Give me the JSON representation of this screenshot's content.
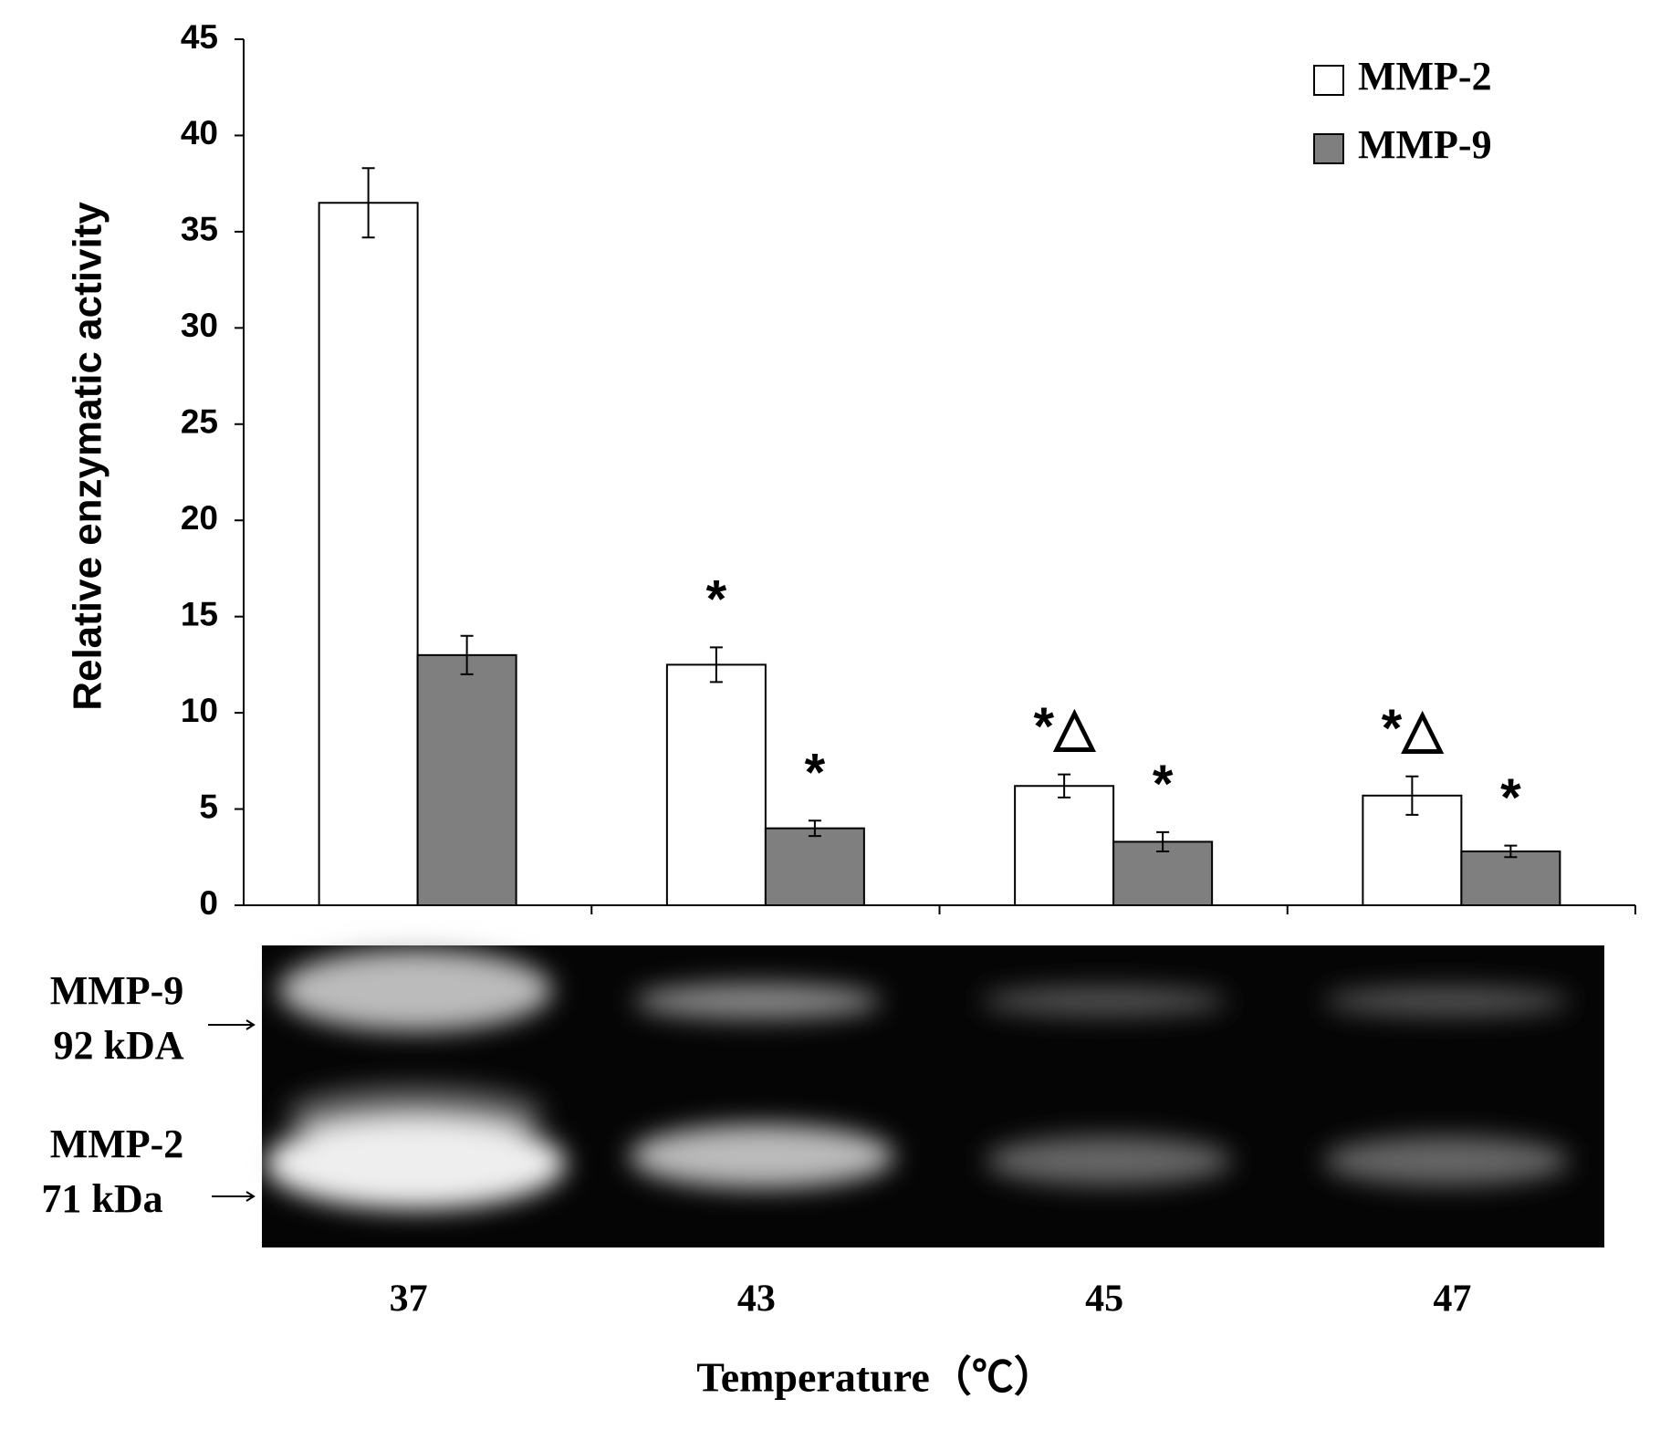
{
  "chart_data": {
    "type": "bar",
    "y_label": "Relative enzymatic activity",
    "x_label": "Temperature（℃）",
    "categories": [
      "37",
      "43",
      "45",
      "47"
    ],
    "series": [
      {
        "name": "MMP-2",
        "color": "#ffffff",
        "values": [
          36.5,
          12.5,
          6.2,
          5.7
        ],
        "errors": [
          1.8,
          0.9,
          0.6,
          1.0
        ],
        "markers": [
          null,
          "*",
          "*△",
          "*△"
        ]
      },
      {
        "name": "MMP-9",
        "color": "#7f7f7f",
        "values": [
          13.0,
          4.0,
          3.3,
          2.8
        ],
        "errors": [
          1.0,
          0.4,
          0.5,
          0.3
        ],
        "markers": [
          null,
          "*",
          "*",
          "*"
        ]
      }
    ],
    "ylim": [
      0,
      45
    ],
    "yticks": [
      0,
      5,
      10,
      15,
      20,
      25,
      30,
      35,
      40,
      45
    ],
    "grid": false,
    "legend": "top-right"
  },
  "gel": {
    "labels": [
      "MMP-9",
      "92 kDA",
      "MMP-2",
      "71 kDa"
    ]
  }
}
